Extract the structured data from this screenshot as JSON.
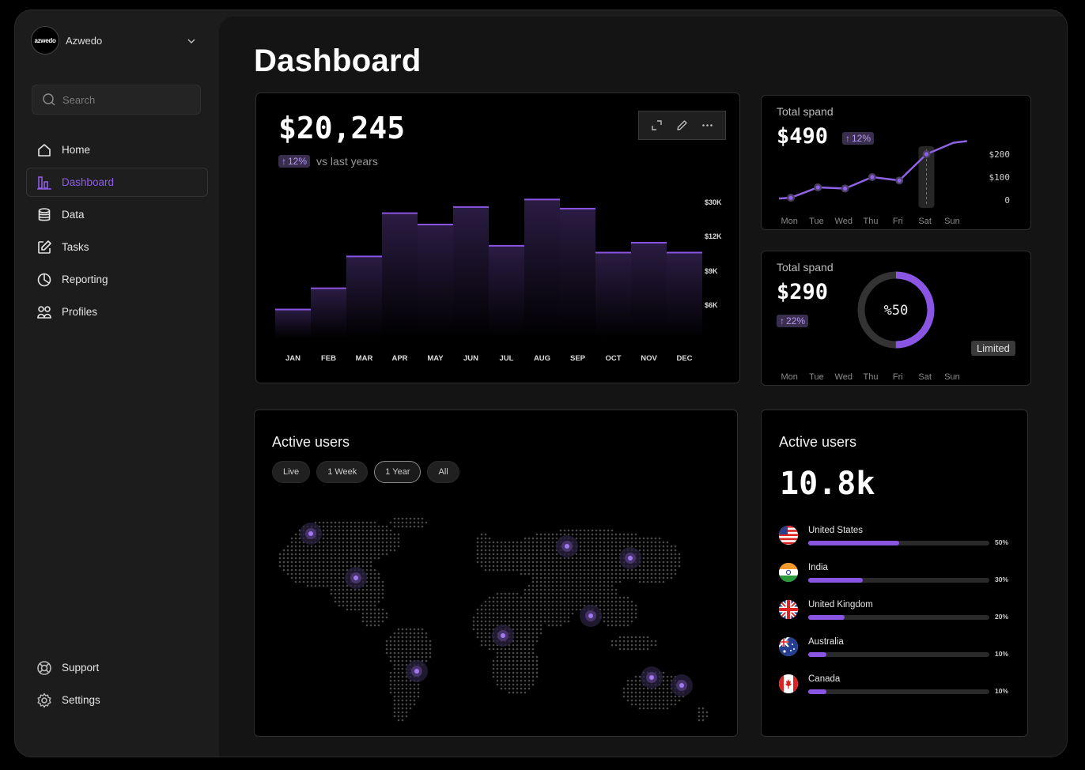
{
  "brand": {
    "logo_text": "azwedo",
    "name": "Azwedo"
  },
  "search": {
    "placeholder": "Search"
  },
  "nav": {
    "home": "Home",
    "dashboard": "Dashboard",
    "data": "Data",
    "tasks": "Tasks",
    "reporting": "Reporting",
    "profiles": "Profiles",
    "support": "Support",
    "settings": "Settings",
    "active": "Dashboard"
  },
  "page": {
    "title": "Dashboard"
  },
  "revenue": {
    "value": "$20,245",
    "change": "12%",
    "change_arrow": "↑",
    "comparison": "vs last years"
  },
  "chart_data": [
    {
      "type": "bar",
      "categories": [
        "JAN",
        "FEB",
        "MAR",
        "APR",
        "MAY",
        "JUN",
        "JUL",
        "AUG",
        "SEP",
        "OCT",
        "NOV",
        "DEC"
      ],
      "values": [
        3.8,
        6.6,
        10.8,
        16.5,
        15.0,
        17.3,
        12.2,
        18.3,
        17.1,
        11.3,
        12.6,
        11.3
      ],
      "y_tick_labels": [
        "$30K",
        "$12K",
        "$9K",
        "$6K"
      ],
      "accent": "#8a55e2"
    },
    {
      "type": "line",
      "categories": [
        "Mon",
        "Tue",
        "Wed",
        "Thu",
        "Fri",
        "Sat",
        "Sun"
      ],
      "values": [
        10,
        55,
        50,
        100,
        85,
        200,
        250
      ],
      "y_tick_labels": [
        "$200",
        "$100",
        "0"
      ],
      "ylim": [
        0,
        300
      ],
      "highlight": "Sat"
    },
    {
      "type": "pie",
      "label": "%50",
      "value": 50
    }
  ],
  "spend1": {
    "label": "Total spand",
    "value": "$490",
    "change": "12%",
    "change_arrow": "↑"
  },
  "spend2": {
    "label": "Total spand",
    "value": "$290",
    "change": "22%",
    "change_arrow": "↑",
    "status": "Limited"
  },
  "days": [
    "Mon",
    "Tue",
    "Wed",
    "Thu",
    "Fri",
    "Sat",
    "Sun"
  ],
  "map": {
    "title": "Active users",
    "filters": [
      "Live",
      "1 Week",
      "1 Year",
      "All"
    ],
    "active_filter": "1 Year"
  },
  "users": {
    "title": "Active users",
    "total": "10.8k",
    "countries": [
      {
        "name": "United States",
        "pct": "50%",
        "value": 0.5,
        "flag": "us-flag"
      },
      {
        "name": "India",
        "pct": "30%",
        "value": 0.3,
        "flag": "india-flag"
      },
      {
        "name": "United Kingdom",
        "pct": "20%",
        "value": 0.2,
        "flag": "uk-flag"
      },
      {
        "name": "Australia",
        "pct": "10%",
        "value": 0.1,
        "flag": "australia-flag"
      },
      {
        "name": "Canada",
        "pct": "10%",
        "value": 0.1,
        "flag": "canada-flag"
      }
    ]
  },
  "colors": {
    "accent": "#8a55e2",
    "badge_bg": "#3a2e4f",
    "badge_text": "#b79af0"
  }
}
